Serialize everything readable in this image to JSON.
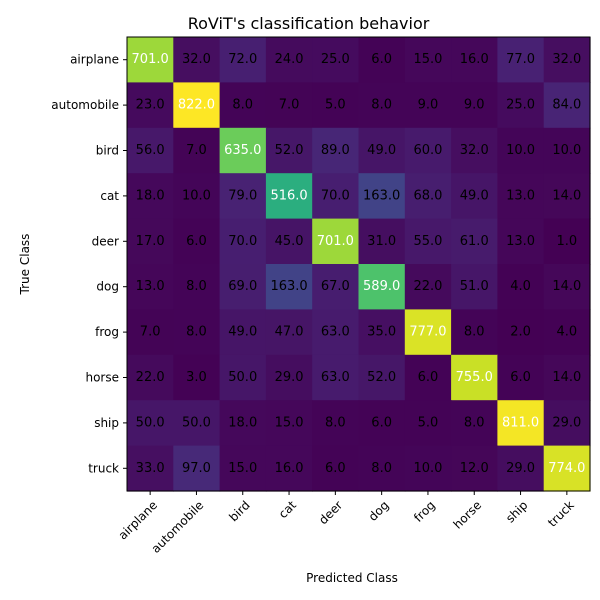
{
  "chart_data": {
    "type": "heatmap",
    "title": "RoViT's classification behavior",
    "xlabel": "Predicted Class",
    "ylabel": "True Class",
    "x_categories": [
      "airplane",
      "automobile",
      "bird",
      "cat",
      "deer",
      "dog",
      "frog",
      "horse",
      "ship",
      "truck"
    ],
    "y_categories": [
      "airplane",
      "automobile",
      "bird",
      "cat",
      "deer",
      "dog",
      "frog",
      "horse",
      "ship",
      "truck"
    ],
    "values": [
      [
        701,
        32,
        72,
        24,
        25,
        6,
        15,
        16,
        77,
        32
      ],
      [
        23,
        822,
        8,
        7,
        5,
        8,
        9,
        9,
        25,
        84
      ],
      [
        56,
        7,
        635,
        52,
        89,
        49,
        60,
        32,
        10,
        10
      ],
      [
        18,
        10,
        79,
        516,
        70,
        163,
        68,
        49,
        13,
        14
      ],
      [
        17,
        6,
        70,
        45,
        701,
        31,
        55,
        61,
        13,
        1
      ],
      [
        13,
        8,
        69,
        163,
        67,
        589,
        22,
        51,
        4,
        14
      ],
      [
        7,
        8,
        49,
        47,
        63,
        35,
        777,
        8,
        2,
        4
      ],
      [
        22,
        3,
        50,
        29,
        63,
        52,
        6,
        755,
        6,
        14
      ],
      [
        50,
        50,
        18,
        15,
        8,
        6,
        5,
        8,
        811,
        29
      ],
      [
        33,
        97,
        15,
        16,
        6,
        8,
        10,
        12,
        29,
        774
      ]
    ],
    "value_range": [
      1,
      822
    ],
    "colormap": "viridis",
    "grid": false,
    "legend": "none"
  }
}
